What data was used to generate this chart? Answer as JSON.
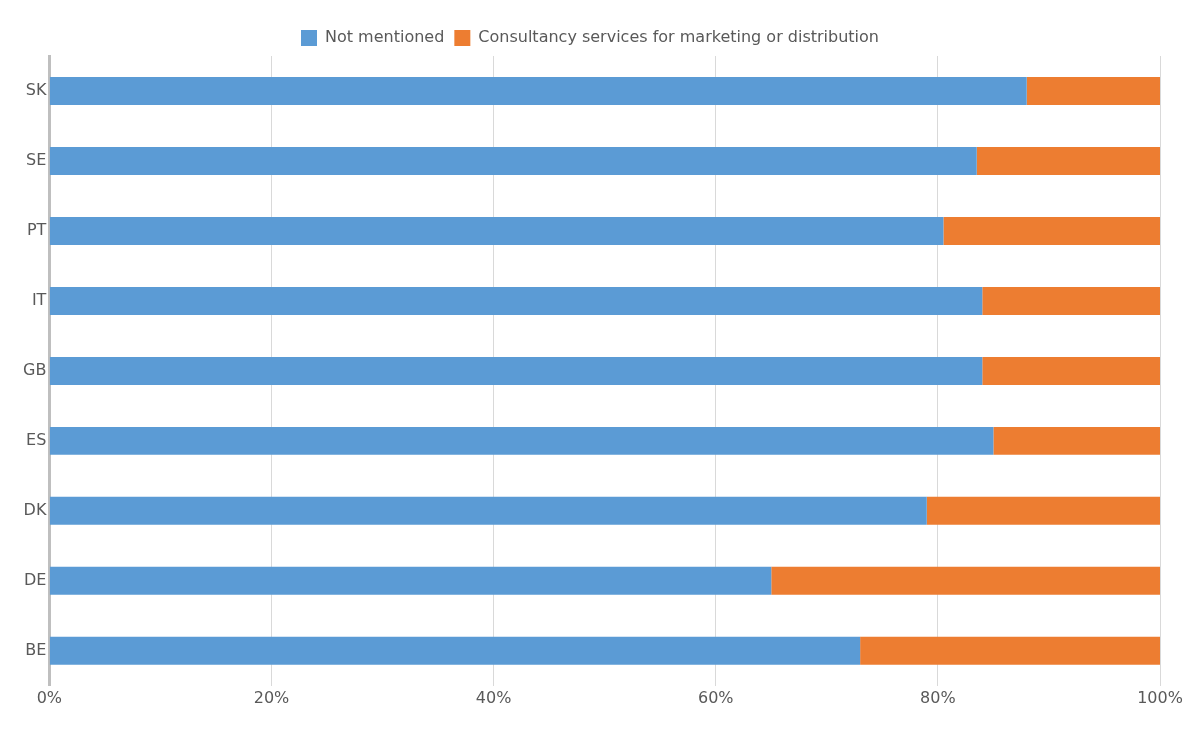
{
  "chart_data": {
    "type": "bar",
    "orientation": "horizontal",
    "stacked": true,
    "categories": [
      "SK",
      "SE",
      "PT",
      "IT",
      "GB",
      "ES",
      "DK",
      "DE",
      "BE"
    ],
    "series": [
      {
        "name": "Not mentioned",
        "color": "#5b9bd5",
        "values": [
          88,
          83.5,
          80.5,
          84,
          84,
          85,
          79,
          65,
          73
        ]
      },
      {
        "name": "Consultancy services for marketing or distribution",
        "color": "#ed7d31",
        "values": [
          12,
          16.5,
          19.5,
          16,
          16,
          15,
          21,
          35,
          27
        ]
      }
    ],
    "xlim": [
      0,
      100
    ],
    "xticks": [
      {
        "value": 0,
        "label": "0%"
      },
      {
        "value": 20,
        "label": "20%"
      },
      {
        "value": 40,
        "label": "40%"
      },
      {
        "value": 60,
        "label": "60%"
      },
      {
        "value": 80,
        "label": "80%"
      },
      {
        "value": 100,
        "label": "100%"
      }
    ],
    "grid": "x",
    "legend": "top"
  }
}
